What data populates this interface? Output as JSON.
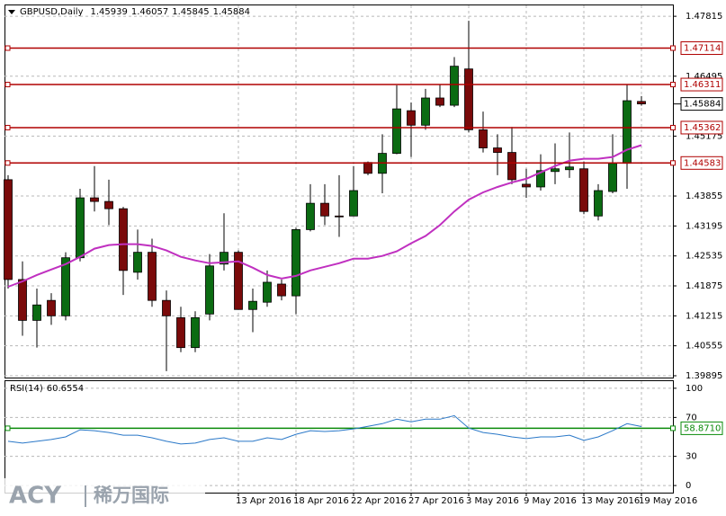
{
  "chart_data": [
    {
      "type": "candlestick",
      "title": "GBPUSD,Daily",
      "categories": [
        null,
        null,
        null,
        null,
        null,
        null,
        null,
        null,
        null,
        null,
        null,
        null,
        null,
        null,
        null,
        null,
        "13 Apr 2016",
        null,
        null,
        null,
        "18 Apr 2016",
        null,
        null,
        null,
        "22 Apr 2016",
        null,
        null,
        null,
        "27 Apr 2016",
        null,
        null,
        null,
        "3 May 2016",
        null,
        null,
        null,
        "9 May 2016",
        null,
        null,
        null,
        "13 May 2016",
        null,
        null,
        null,
        "19 May 2016"
      ],
      "open": [
        1.44215,
        1.42015,
        1.41115,
        1.41555,
        1.41215,
        1.42495,
        1.43815,
        1.43735,
        1.43575,
        1.42175,
        1.42615,
        1.41555,
        1.41175,
        1.40515,
        1.41255,
        1.42355,
        1.42615,
        1.41355,
        1.41515,
        1.41915,
        1.41655,
        1.43115,
        1.43695,
        1.43415,
        1.43415,
        1.44595,
        1.44355,
        1.44795,
        1.45735,
        1.45415,
        1.46015,
        1.45855,
        1.46655,
        1.45315,
        1.44915,
        1.44815,
        1.44115,
        1.44055,
        1.44395,
        1.44435,
        1.44455,
        1.43415,
        1.43955,
        1.44575,
        1.45939
      ],
      "high": [
        1.44315,
        1.42415,
        1.41815,
        1.41715,
        1.42615,
        1.44015,
        1.44515,
        1.44215,
        1.43615,
        1.43115,
        1.42915,
        1.41775,
        1.41415,
        1.41315,
        1.42575,
        1.43475,
        1.42655,
        1.41815,
        1.42215,
        1.42015,
        1.43155,
        1.44115,
        1.44115,
        1.44315,
        1.44515,
        1.44615,
        1.45215,
        1.46295,
        1.45915,
        1.46215,
        1.46315,
        1.46915,
        1.47715,
        1.45715,
        1.45215,
        1.45375,
        1.44455,
        1.44775,
        1.45015,
        1.45255,
        1.44615,
        1.44115,
        1.45215,
        1.46315,
        1.46057
      ],
      "low": [
        1.41815,
        1.40775,
        1.40515,
        1.41015,
        1.41115,
        1.42415,
        1.43515,
        1.43215,
        1.41675,
        1.42015,
        1.41415,
        1.39995,
        1.40415,
        1.40415,
        1.41115,
        1.42215,
        1.41355,
        1.40855,
        1.41415,
        1.41555,
        1.41255,
        1.43075,
        1.43215,
        1.42955,
        1.43415,
        1.44315,
        1.43915,
        1.44775,
        1.44715,
        1.45315,
        1.45815,
        1.45815,
        1.45255,
        1.44815,
        1.44315,
        1.44115,
        1.43815,
        1.43975,
        1.44115,
        1.44255,
        1.43455,
        1.43315,
        1.43915,
        1.44015,
        1.45845
      ],
      "close": [
        1.42015,
        1.41115,
        1.41455,
        1.41215,
        1.42495,
        1.43815,
        1.43735,
        1.43575,
        1.42215,
        1.42615,
        1.41555,
        1.41215,
        1.40515,
        1.41175,
        1.42315,
        1.42615,
        1.41355,
        1.41535,
        1.41955,
        1.41655,
        1.43115,
        1.43695,
        1.43415,
        1.43395,
        1.43975,
        1.44355,
        1.44795,
        1.45775,
        1.45415,
        1.46015,
        1.45855,
        1.46715,
        1.45315,
        1.44915,
        1.44815,
        1.44215,
        1.44055,
        1.44415,
        1.44455,
        1.44495,
        1.43515,
        1.43975,
        1.44575,
        1.45955,
        1.45884
      ],
      "up_color": "#0b6b12",
      "down_color": "#7a0a0a",
      "overlay": {
        "color": "#c030c0",
        "values": [
          1.41855,
          1.41975,
          1.42115,
          1.42235,
          1.42355,
          1.42515,
          1.42695,
          1.42775,
          1.42795,
          1.42795,
          1.42755,
          1.42655,
          1.42515,
          1.42435,
          1.42375,
          1.42395,
          1.42415,
          1.42275,
          1.42115,
          1.42035,
          1.42095,
          1.42215,
          1.42295,
          1.42375,
          1.42475,
          1.42475,
          1.42535,
          1.42635,
          1.42815,
          1.42975,
          1.43215,
          1.43515,
          1.43775,
          1.43935,
          1.44055,
          1.44155,
          1.44235,
          1.44375,
          1.44515,
          1.44635,
          1.44675,
          1.44675,
          1.44715,
          1.44875,
          1.44975
        ]
      },
      "levels": [
        {
          "value": 1.47114,
          "color": "#b00000"
        },
        {
          "value": 1.46311,
          "color": "#b00000"
        },
        {
          "value": 1.45362,
          "color": "#b00000"
        },
        {
          "value": 1.44583,
          "color": "#b00000"
        }
      ],
      "ylim": [
        1.39855,
        1.48055
      ],
      "yticks": [
        1.47815,
        1.46495,
        1.45175,
        1.43855,
        1.43195,
        1.42535,
        1.41875,
        1.41215,
        1.40555,
        1.39895
      ],
      "grid": true
    },
    {
      "type": "line",
      "title": "RSI(14)",
      "values": [
        45.5,
        43.6,
        45.5,
        47.3,
        50,
        57.3,
        56.4,
        54.5,
        51.8,
        51.8,
        49.1,
        45.5,
        42.7,
        43.6,
        47.3,
        49.1,
        45.5,
        45.5,
        49.1,
        47.3,
        52.7,
        56.4,
        55.5,
        56.4,
        58.2,
        60.9,
        63.6,
        68.2,
        65.5,
        68.2,
        68.2,
        71.8,
        59.1,
        54.5,
        52.7,
        50,
        48.2,
        50,
        50,
        51.8,
        46.4,
        50,
        56.4,
        63.6,
        60.6554
      ],
      "color": "#2a78c8",
      "levels": [
        {
          "value": 58.871,
          "label": "58.8710",
          "color": "#0a8a0a"
        }
      ],
      "ylim": [
        -7.3,
        107.3
      ],
      "yticks": [
        100,
        70,
        30,
        0
      ],
      "grid": true
    }
  ],
  "logo": {
    "brand": "ACY",
    "name": "稀万国际"
  }
}
